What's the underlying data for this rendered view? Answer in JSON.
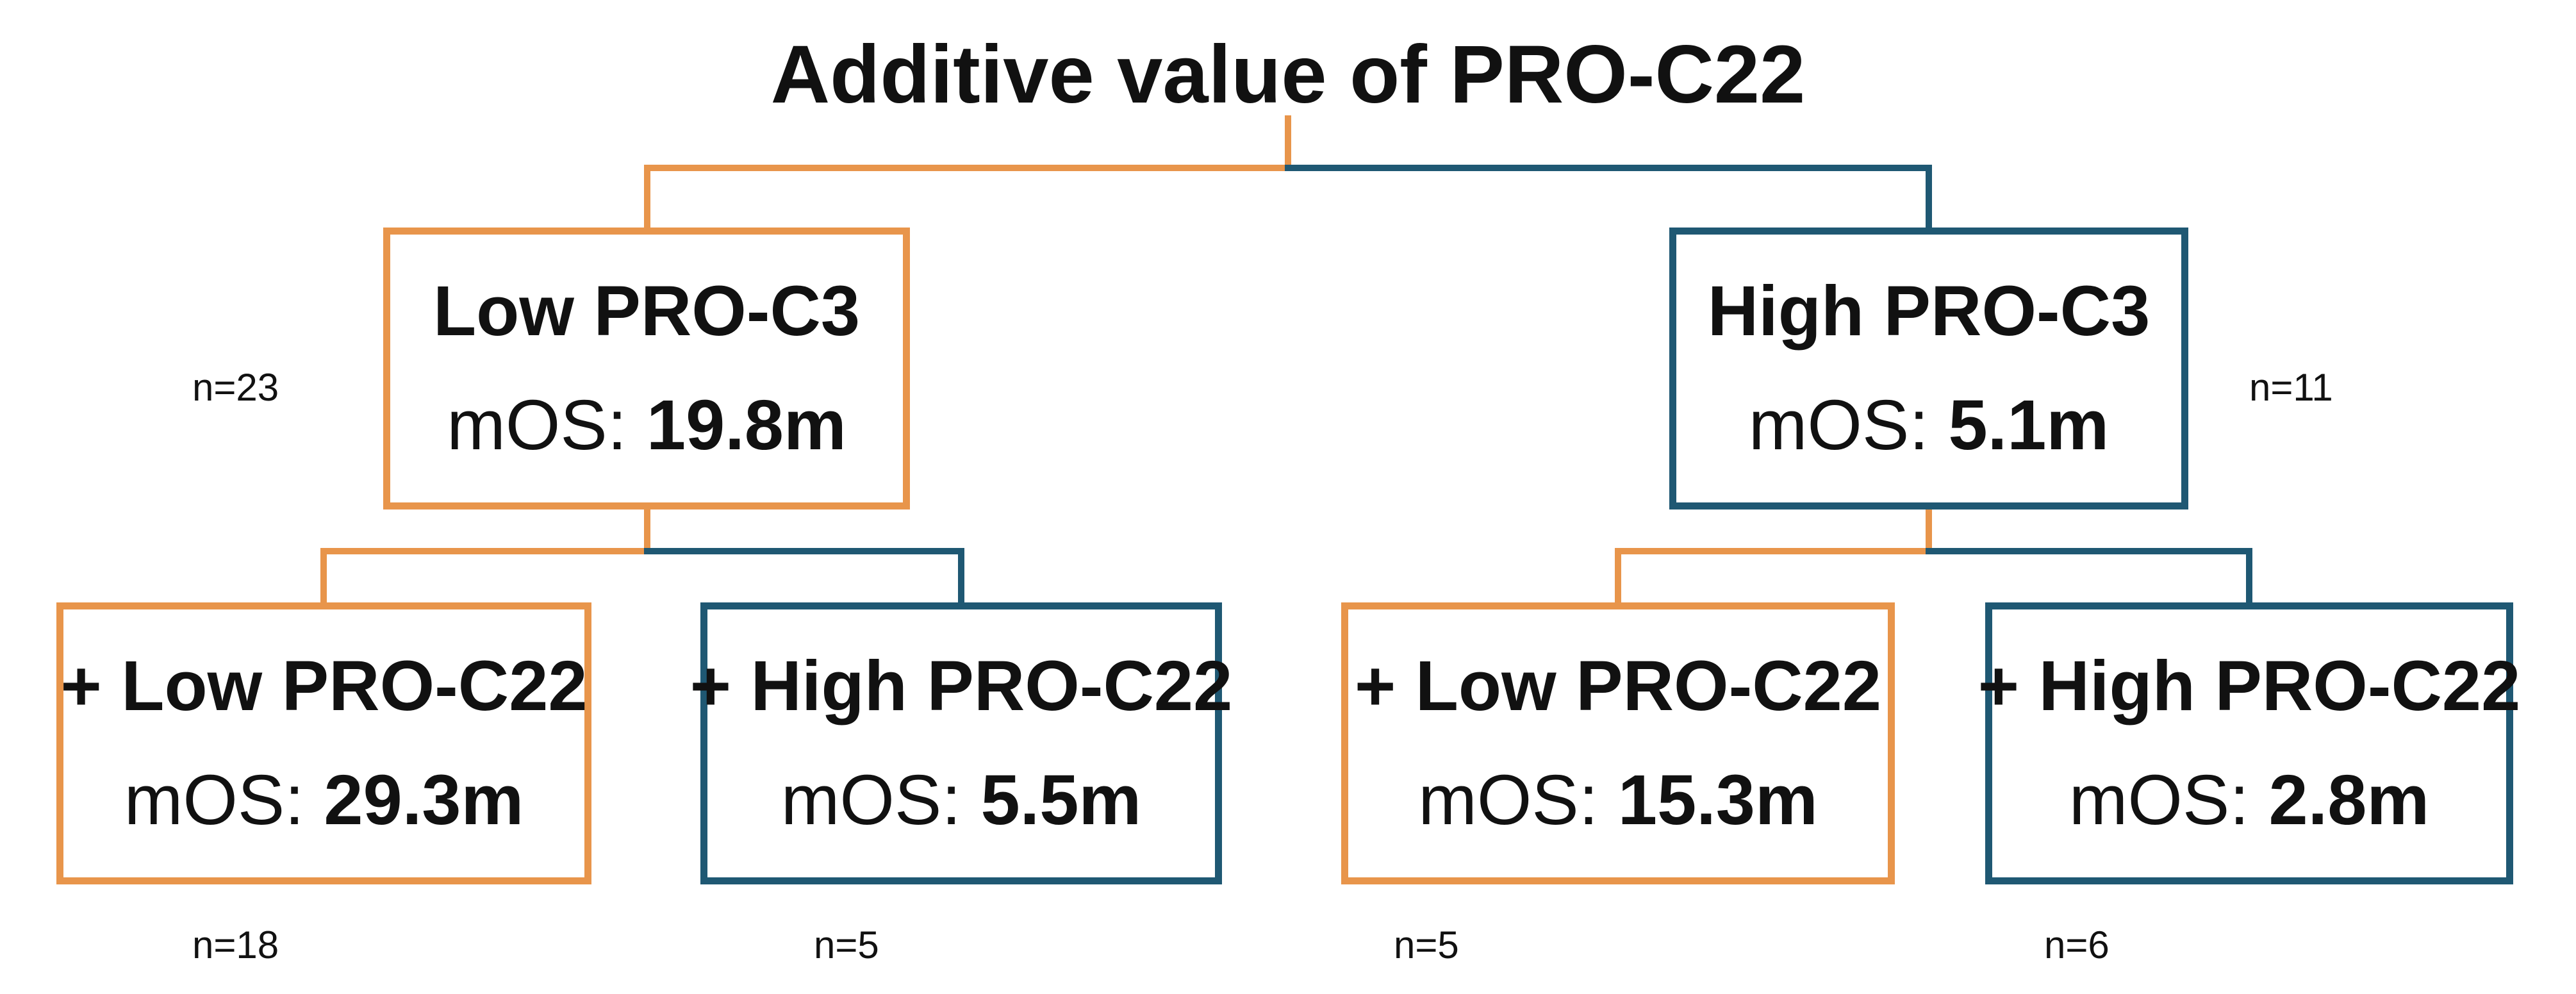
{
  "title": "Additive value of PRO-C22",
  "colors": {
    "low": "#E8954B",
    "high": "#1F5873"
  },
  "root": {
    "low": {
      "label": "Low PRO-C3",
      "stat_prefix": "mOS:",
      "stat_value": "19.8m",
      "n": "n=23"
    },
    "high": {
      "label": "High PRO-C3",
      "stat_prefix": "mOS:",
      "stat_value": "5.1m",
      "n": "n=11"
    }
  },
  "leaves": [
    {
      "label": "+ Low PRO-C22",
      "stat_prefix": "mOS:",
      "stat_value": "29.3m",
      "n": "n=18"
    },
    {
      "label": "+ High PRO-C22",
      "stat_prefix": "mOS:",
      "stat_value": "5.5m",
      "n": "n=5"
    },
    {
      "label": "+ Low PRO-C22",
      "stat_prefix": "mOS:",
      "stat_value": "15.3m",
      "n": "n=5"
    },
    {
      "label": "+ High PRO-C22",
      "stat_prefix": "mOS:",
      "stat_value": "2.8m",
      "n": "n=6"
    }
  ]
}
